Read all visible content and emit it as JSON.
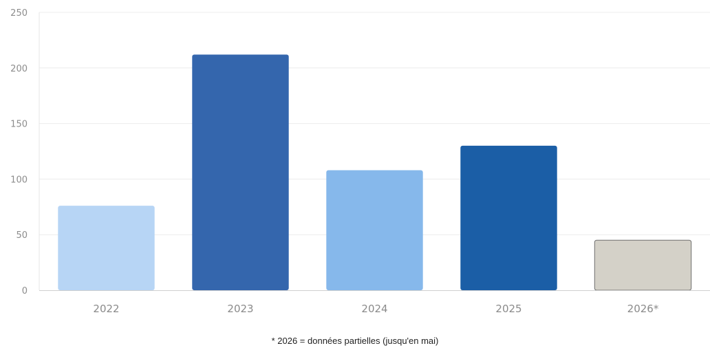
{
  "chart_data": {
    "type": "bar",
    "categories": [
      "2022",
      "2023",
      "2024",
      "2025",
      "2026*"
    ],
    "values": [
      76,
      212,
      108,
      130,
      45
    ],
    "colors": [
      "#b7d5f5",
      "#3466ad",
      "#86b8eb",
      "#1b5ea6",
      "#d4d1c8"
    ],
    "outline_colors": [
      "none",
      "none",
      "none",
      "none",
      "#6f6f6f"
    ],
    "ylim": [
      0,
      250
    ],
    "yticks": [
      0,
      50,
      100,
      150,
      200,
      250
    ],
    "grid": true,
    "legend": "none"
  },
  "footnote": "* 2026 = données partielles (jusqu'en mai)"
}
